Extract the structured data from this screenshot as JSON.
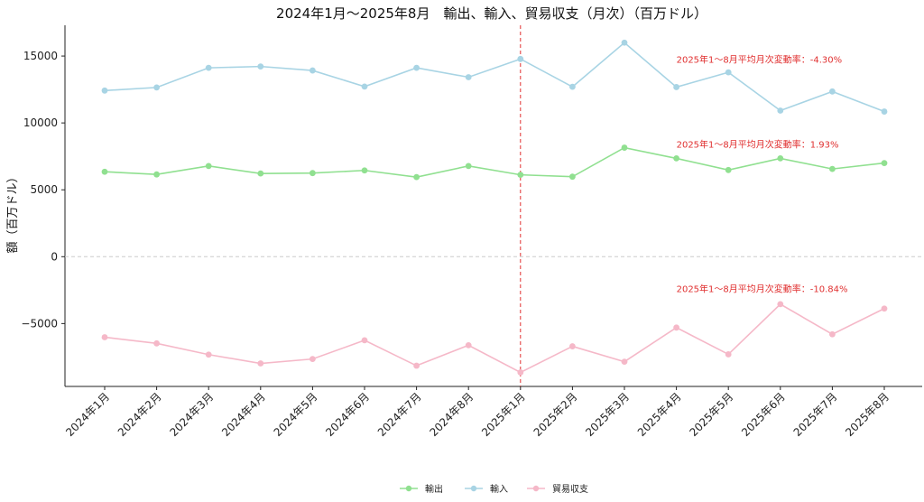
{
  "chart_data": {
    "type": "line",
    "title": "2024年1月～2025年8月　輸出、輸入、貿易収支（月次）（百万ドル）",
    "xlabel": "",
    "ylabel": "額（百万ドル）",
    "ylim": [
      -9700,
      17300
    ],
    "yticks": [
      -5000,
      0,
      5000,
      10000,
      15000
    ],
    "categories": [
      "2024年1月",
      "2024年2月",
      "2024年3月",
      "2024年4月",
      "2024年5月",
      "2024年6月",
      "2024年7月",
      "2024年8月",
      "2025年1月",
      "2025年2月",
      "2025年3月",
      "2025年4月",
      "2025年5月",
      "2025年6月",
      "2025年7月",
      "2025年8月"
    ],
    "series": [
      {
        "name": "輸出",
        "color": "#90e090",
        "values": [
          6350,
          6150,
          6780,
          6220,
          6250,
          6450,
          5950,
          6780,
          6120,
          5980,
          8150,
          7350,
          6480,
          7350,
          6560,
          7000
        ]
      },
      {
        "name": "輸入",
        "color": "#a8d4e4",
        "values": [
          12420,
          12650,
          14120,
          14220,
          13920,
          12720,
          14120,
          13420,
          14780,
          12700,
          16000,
          12680,
          13780,
          10920,
          12350,
          10850
        ]
      },
      {
        "name": "貿易収支",
        "color": "#f5b8c8",
        "values": [
          -6020,
          -6480,
          -7320,
          -7980,
          -7650,
          -6250,
          -8150,
          -6620,
          -8650,
          -6700,
          -7850,
          -5300,
          -7300,
          -3550,
          -5800,
          -3880
        ]
      }
    ],
    "annotations": [
      {
        "text": "2025年1～8月平均月次変動率：-4.30%",
        "x": "2025年4月",
        "y": 14500,
        "color": "#e03030"
      },
      {
        "text": "2025年1～8月平均月次変動率：1.93%",
        "x": "2025年4月",
        "y": 8150,
        "color": "#e03030"
      },
      {
        "text": "2025年1～8月平均月次変動率：-10.84%",
        "x": "2025年4月",
        "y": -2650,
        "color": "#e03030"
      }
    ],
    "reference_lines": [
      {
        "orientation": "vertical",
        "x": "2025年1月",
        "color": "#e03030",
        "style": "dashed"
      },
      {
        "orientation": "horizontal",
        "y": 0,
        "color": "#cccccc",
        "style": "dashed"
      }
    ],
    "grid": false,
    "legend": {
      "position": "bottom-center"
    }
  }
}
